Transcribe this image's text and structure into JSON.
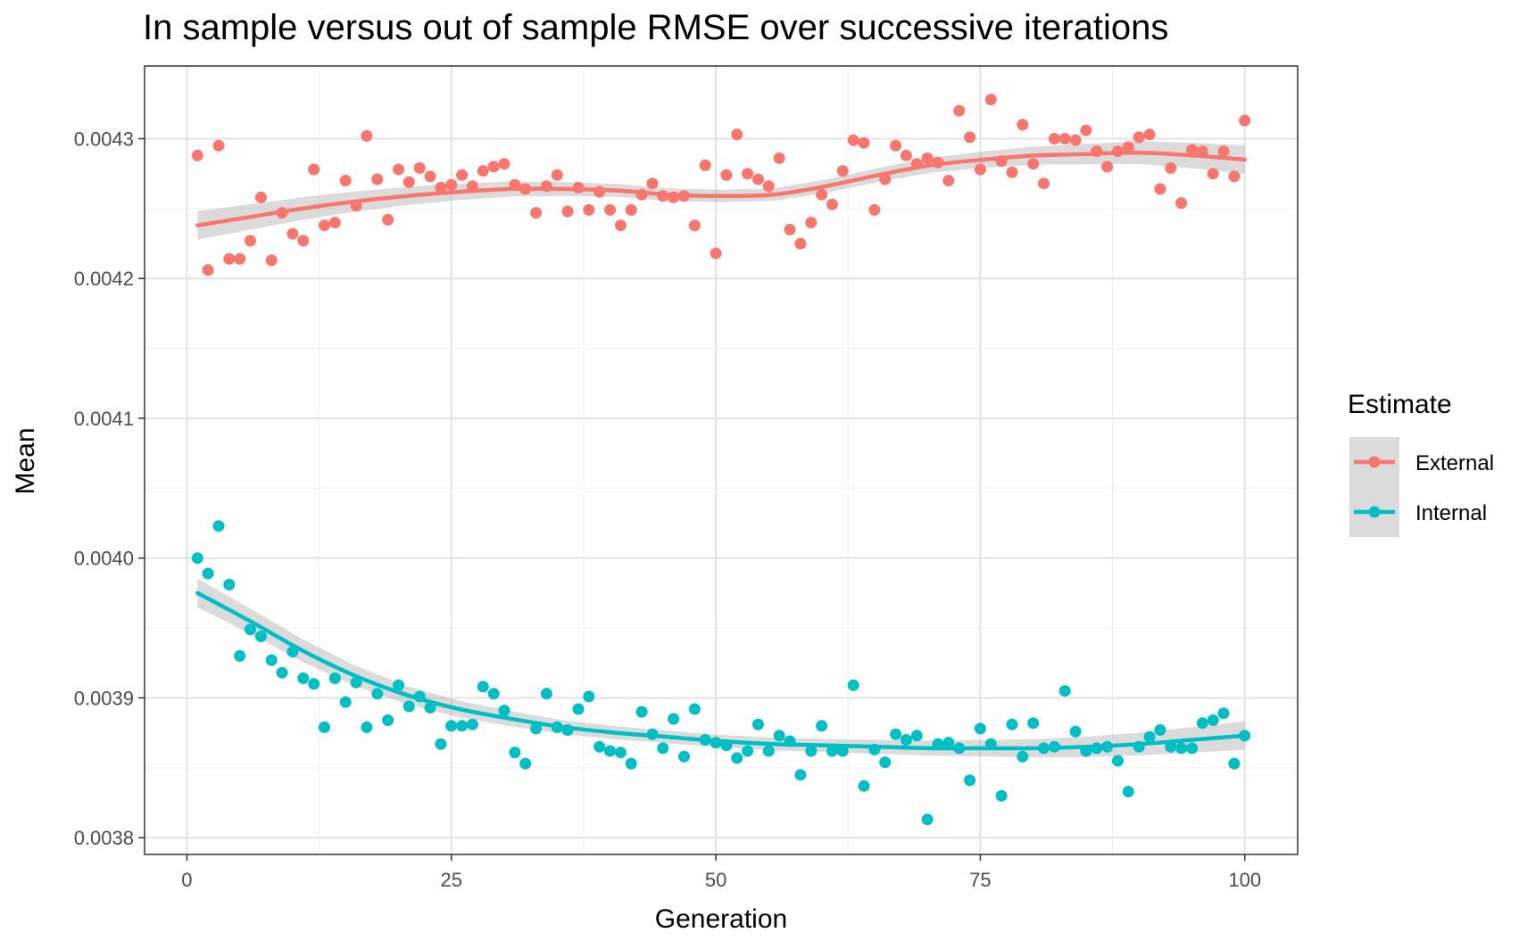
{
  "chart_data": {
    "type": "scatter",
    "title": "In sample versus out of sample RMSE over successive iterations",
    "xlabel": "Generation",
    "ylabel": "Mean",
    "xlim": [
      -4,
      105
    ],
    "ylim": [
      0.003788,
      0.004352
    ],
    "x_ticks": [
      0,
      25,
      50,
      75,
      100
    ],
    "x_tick_labels": [
      "0",
      "25",
      "50",
      "75",
      "100"
    ],
    "y_ticks": [
      0.0038,
      0.0039,
      0.004,
      0.0041,
      0.0042,
      0.0043
    ],
    "y_tick_labels": [
      "0.0038",
      "0.0039",
      "0.0040",
      "0.0041",
      "0.0042",
      "0.0043"
    ],
    "grid": true,
    "legend": {
      "title": "Estimate",
      "placement": "right"
    },
    "smooth_band": true,
    "series": [
      {
        "name": "External",
        "color": "#F8766D",
        "x": [
          1,
          2,
          3,
          4,
          5,
          6,
          7,
          8,
          9,
          10,
          11,
          12,
          13,
          14,
          15,
          16,
          17,
          18,
          19,
          20,
          21,
          22,
          23,
          24,
          25,
          26,
          27,
          28,
          29,
          30,
          31,
          32,
          33,
          34,
          35,
          36,
          37,
          38,
          39,
          40,
          41,
          42,
          43,
          44,
          45,
          46,
          47,
          48,
          49,
          50,
          51,
          52,
          53,
          54,
          55,
          56,
          57,
          58,
          59,
          60,
          61,
          62,
          63,
          64,
          65,
          66,
          67,
          68,
          69,
          70,
          71,
          72,
          73,
          74,
          75,
          76,
          77,
          78,
          79,
          80,
          81,
          82,
          83,
          84,
          85,
          86,
          87,
          88,
          89,
          90,
          91,
          92,
          93,
          94,
          95,
          96,
          97,
          98,
          99,
          100
        ],
        "values": [
          0.004288,
          0.004206,
          0.004295,
          0.004214,
          0.004214,
          0.004227,
          0.004258,
          0.004213,
          0.004247,
          0.004232,
          0.004227,
          0.004278,
          0.004238,
          0.00424,
          0.00427,
          0.004252,
          0.004302,
          0.004271,
          0.004242,
          0.004278,
          0.004269,
          0.004279,
          0.004273,
          0.004265,
          0.004267,
          0.004274,
          0.004266,
          0.004277,
          0.00428,
          0.004282,
          0.004267,
          0.004264,
          0.004247,
          0.004266,
          0.004274,
          0.004248,
          0.004265,
          0.004249,
          0.004262,
          0.004249,
          0.004238,
          0.004249,
          0.00426,
          0.004268,
          0.004259,
          0.004258,
          0.004259,
          0.004238,
          0.004281,
          0.004218,
          0.004274,
          0.004303,
          0.004275,
          0.004271,
          0.004266,
          0.004286,
          0.004235,
          0.004225,
          0.00424,
          0.00426,
          0.004253,
          0.004277,
          0.004299,
          0.004297,
          0.004249,
          0.004271,
          0.004295,
          0.004288,
          0.004282,
          0.004286,
          0.004283,
          0.00427,
          0.00432,
          0.004301,
          0.004278,
          0.004328,
          0.004284,
          0.004276,
          0.00431,
          0.004282,
          0.004268,
          0.0043,
          0.0043,
          0.004299,
          0.004306,
          0.004291,
          0.00428,
          0.004291,
          0.004294,
          0.004301,
          0.004303,
          0.004264,
          0.004279,
          0.004254,
          0.004292,
          0.004291,
          0.004275,
          0.004291,
          0.004273,
          0.004313
        ],
        "trend": [
          0.004238,
          0.004244,
          0.00425,
          0.004255,
          0.004259,
          0.004262,
          0.004264,
          0.004264,
          0.004263,
          0.00426,
          0.004259,
          0.00426,
          0.004266,
          0.004274,
          0.004281,
          0.004285,
          0.004288,
          0.004289,
          0.00429,
          0.004288,
          0.004285
        ]
      },
      {
        "name": "Internal",
        "color": "#00BFC4",
        "x": [
          1,
          2,
          3,
          4,
          5,
          6,
          7,
          8,
          9,
          10,
          11,
          12,
          13,
          14,
          15,
          16,
          17,
          18,
          19,
          20,
          21,
          22,
          23,
          24,
          25,
          26,
          27,
          28,
          29,
          30,
          31,
          32,
          33,
          34,
          35,
          36,
          37,
          38,
          39,
          40,
          41,
          42,
          43,
          44,
          45,
          46,
          47,
          48,
          49,
          50,
          51,
          52,
          53,
          54,
          55,
          56,
          57,
          58,
          59,
          60,
          61,
          62,
          63,
          64,
          65,
          66,
          67,
          68,
          69,
          70,
          71,
          72,
          73,
          74,
          75,
          76,
          77,
          78,
          79,
          80,
          81,
          82,
          83,
          84,
          85,
          86,
          87,
          88,
          89,
          90,
          91,
          92,
          93,
          94,
          95,
          96,
          97,
          98,
          99,
          100
        ],
        "values": [
          0.004,
          0.003989,
          0.004023,
          0.003981,
          0.00393,
          0.003949,
          0.003944,
          0.003927,
          0.003918,
          0.003933,
          0.003914,
          0.00391,
          0.003879,
          0.003914,
          0.003897,
          0.003911,
          0.003879,
          0.003903,
          0.003884,
          0.003909,
          0.003894,
          0.003901,
          0.003893,
          0.003867,
          0.00388,
          0.00388,
          0.003881,
          0.003908,
          0.003903,
          0.003891,
          0.003861,
          0.003853,
          0.003878,
          0.003903,
          0.003879,
          0.003877,
          0.003892,
          0.003901,
          0.003865,
          0.003862,
          0.003861,
          0.003853,
          0.00389,
          0.003874,
          0.003864,
          0.003885,
          0.003858,
          0.003892,
          0.00387,
          0.003868,
          0.003866,
          0.003857,
          0.003862,
          0.003881,
          0.003862,
          0.003873,
          0.003869,
          0.003845,
          0.003862,
          0.00388,
          0.003862,
          0.003862,
          0.003909,
          0.003837,
          0.003863,
          0.003854,
          0.003874,
          0.00387,
          0.003873,
          0.003813,
          0.003867,
          0.003868,
          0.003864,
          0.003841,
          0.003878,
          0.003867,
          0.00383,
          0.003881,
          0.003858,
          0.003882,
          0.003864,
          0.003865,
          0.003905,
          0.003876,
          0.003862,
          0.003864,
          0.003865,
          0.003855,
          0.003833,
          0.003865,
          0.003872,
          0.003877,
          0.003865,
          0.003864,
          0.003864,
          0.003882,
          0.003884,
          0.003889,
          0.003853,
          0.003873
        ],
        "trend": [
          0.003975,
          0.003955,
          0.003934,
          0.003916,
          0.003902,
          0.003892,
          0.003885,
          0.003879,
          0.003875,
          0.003872,
          0.003869,
          0.003867,
          0.003866,
          0.003865,
          0.003864,
          0.003864,
          0.003864,
          0.003865,
          0.003867,
          0.00387,
          0.003873
        ]
      }
    ]
  }
}
